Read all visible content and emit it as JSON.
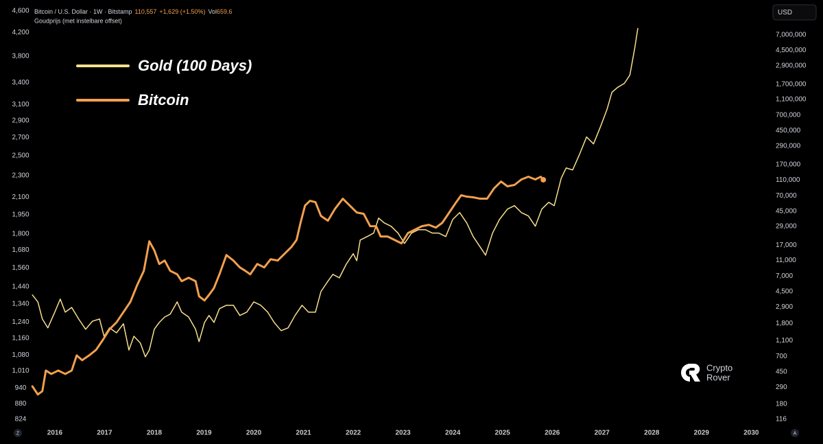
{
  "header": {
    "symbol": "Bitcoin / U.S. Dollar · 1W · Bitstamp",
    "price": "110,557",
    "change": "+1,629 (+1.50%)",
    "volume_label": "Vol",
    "volume": "659.6",
    "indicator": "Goudprijs (met instelbare offset)"
  },
  "currency_button": "USD",
  "scale_buttons": [
    "Z",
    "A"
  ],
  "watermark": [
    "Crypto",
    "Rover"
  ],
  "chart_data": {
    "type": "line",
    "log_scale": true,
    "grid": false,
    "legend": "top-left",
    "xlim": [
      2015.45,
      2030.34
    ],
    "xticks": [
      2016,
      2017,
      2018,
      2019,
      2020,
      2021,
      2022,
      2023,
      2024,
      2025,
      2026,
      2027,
      2028,
      2029,
      2030
    ],
    "ylim": [
      824,
      4600
    ],
    "yticks": [
      824,
      880,
      940,
      {
        "value": 1010,
        "label": "1,010"
      },
      {
        "value": 1080,
        "label": "1,080"
      },
      {
        "value": 1160,
        "label": "1,160"
      },
      {
        "value": 1240,
        "label": "1,240"
      },
      {
        "value": 1340,
        "label": "1,340"
      },
      {
        "value": 1440,
        "label": "1,440"
      },
      {
        "value": 1560,
        "label": "1,560"
      },
      {
        "value": 1680,
        "label": "1,680"
      },
      {
        "value": 1800,
        "label": "1,800"
      },
      {
        "value": 1950,
        "label": "1,950"
      },
      {
        "value": 2100,
        "label": "2,100"
      },
      {
        "value": 2300,
        "label": "2,300"
      },
      {
        "value": 2500,
        "label": "2,500"
      },
      {
        "value": 2700,
        "label": "2,700"
      },
      {
        "value": 2900,
        "label": "2,900"
      },
      {
        "value": 3100,
        "label": "3,100"
      },
      {
        "value": 3400,
        "label": "3,400"
      },
      {
        "value": 3800,
        "label": "3,800"
      },
      {
        "value": 4200,
        "label": "4,200"
      },
      {
        "value": 4600,
        "label": "4,600"
      }
    ],
    "y2lim": [
      116,
      13900000
    ],
    "y2ticks": [
      116,
      180,
      290,
      450,
      700,
      {
        "value": 1100,
        "label": "1,100"
      },
      {
        "value": 1800,
        "label": "1,800"
      },
      {
        "value": 2900,
        "label": "2,900"
      },
      {
        "value": 4500,
        "label": "4,500"
      },
      {
        "value": 7000,
        "label": "7,000"
      },
      {
        "value": 11000,
        "label": "11,000"
      },
      {
        "value": 17000,
        "label": "17,000"
      },
      {
        "value": 29000,
        "label": "29,000"
      },
      {
        "value": 45000,
        "label": "45,000"
      },
      {
        "value": 70000,
        "label": "70,000"
      },
      {
        "value": 110000,
        "label": "110,000"
      },
      {
        "value": 170000,
        "label": "170,000"
      },
      {
        "value": 290000,
        "label": "290,000"
      },
      {
        "value": 450000,
        "label": "450,000"
      },
      {
        "value": 700000,
        "label": "700,000"
      },
      {
        "value": 1100000,
        "label": "1,100,000"
      },
      {
        "value": 1700000,
        "label": "1,700,000"
      },
      {
        "value": 2900000,
        "label": "2,900,000"
      },
      {
        "value": 4500000,
        "label": "4,500,000"
      },
      {
        "value": 7000000,
        "label": "7,000,000"
      }
    ],
    "series": [
      {
        "name": "Gold (100 Days)",
        "color": "#f8e08c",
        "width": 1.5,
        "x": [
          2015.55,
          2015.66,
          2015.75,
          2015.86,
          2016.0,
          2016.11,
          2016.21,
          2016.34,
          2016.48,
          2016.62,
          2016.76,
          2016.9,
          2016.99,
          2017.1,
          2017.24,
          2017.38,
          2017.49,
          2017.59,
          2017.72,
          2017.82,
          2017.9,
          2018.0,
          2018.1,
          2018.21,
          2018.32,
          2018.46,
          2018.55,
          2018.69,
          2018.83,
          2018.9,
          2019.01,
          2019.1,
          2019.2,
          2019.31,
          2019.45,
          2019.59,
          2019.72,
          2019.86,
          2020.0,
          2020.14,
          2020.28,
          2020.41,
          2020.55,
          2020.69,
          2020.83,
          2020.97,
          2021.1,
          2021.24,
          2021.35,
          2021.49,
          2021.59,
          2021.72,
          2021.86,
          2022.0,
          2022.07,
          2022.14,
          2022.28,
          2022.41,
          2022.51,
          2022.62,
          2022.76,
          2022.9,
          2023.03,
          2023.17,
          2023.31,
          2023.45,
          2023.59,
          2023.72,
          2023.86,
          2024.0,
          2024.14,
          2024.28,
          2024.41,
          2024.55,
          2024.66,
          2024.8,
          2024.94,
          2025.1,
          2025.24,
          2025.38,
          2025.52,
          2025.66,
          2025.79,
          2025.93,
          2026.04,
          2026.18,
          2026.28,
          2026.41,
          2026.55,
          2026.69,
          2026.83,
          2026.97,
          2027.1,
          2027.2,
          2027.31,
          2027.45,
          2027.56,
          2027.61,
          2027.66,
          2027.72
        ],
        "values": [
          1391,
          1351,
          1257,
          1211,
          1294,
          1367,
          1294,
          1320,
          1257,
          1204,
          1246,
          1257,
          1169,
          1211,
          1186,
          1232,
          1103,
          1169,
          1136,
          1072,
          1103,
          1204,
          1239,
          1268,
          1283,
          1351,
          1294,
          1268,
          1204,
          1143,
          1239,
          1276,
          1239,
          1313,
          1332,
          1332,
          1276,
          1294,
          1351,
          1332,
          1294,
          1239,
          1197,
          1211,
          1276,
          1332,
          1294,
          1294,
          1411,
          1474,
          1517,
          1495,
          1584,
          1655,
          1607,
          1753,
          1779,
          1805,
          1923,
          1885,
          1858,
          1805,
          1728,
          1805,
          1831,
          1831,
          1805,
          1805,
          1779,
          1912,
          1968,
          1885,
          1779,
          1703,
          1645,
          1805,
          1912,
          1997,
          2026,
          1968,
          1940,
          1858,
          1997,
          2055,
          2026,
          2274,
          2375,
          2355,
          2517,
          2706,
          2628,
          2826,
          3037,
          3266,
          3332,
          3391,
          3510,
          3719,
          3941,
          4273
        ]
      },
      {
        "name": "Bitcoin",
        "color": "#f2a04e",
        "width": 3,
        "axis": "y2",
        "x": [
          2015.55,
          2015.66,
          2015.75,
          2015.82,
          2015.93,
          2016.07,
          2016.21,
          2016.34,
          2016.44,
          2016.55,
          2016.69,
          2016.83,
          2016.97,
          2017.1,
          2017.24,
          2017.38,
          2017.52,
          2017.66,
          2017.79,
          2017.9,
          2018.0,
          2018.1,
          2018.21,
          2018.32,
          2018.46,
          2018.55,
          2018.69,
          2018.83,
          2018.9,
          2019.01,
          2019.1,
          2019.2,
          2019.31,
          2019.45,
          2019.59,
          2019.72,
          2019.83,
          2019.93,
          2020.07,
          2020.21,
          2020.34,
          2020.48,
          2020.62,
          2020.76,
          2020.86,
          2020.94,
          2021.03,
          2021.13,
          2021.24,
          2021.35,
          2021.49,
          2021.63,
          2021.79,
          2021.93,
          2022.07,
          2022.21,
          2022.34,
          2022.46,
          2022.55,
          2022.69,
          2022.83,
          2022.97,
          2023.1,
          2023.24,
          2023.38,
          2023.52,
          2023.66,
          2023.79,
          2023.93,
          2024.07,
          2024.17,
          2024.28,
          2024.41,
          2024.55,
          2024.69,
          2024.83,
          2024.97,
          2025.1,
          2025.24,
          2025.38,
          2025.52,
          2025.66,
          2025.77,
          2025.82
        ],
        "values": [
          298,
          236,
          260,
          469,
          425,
          469,
          425,
          469,
          723,
          630,
          723,
          847,
          1137,
          1528,
          1860,
          2499,
          3357,
          5491,
          8141,
          18976,
          14688,
          9910,
          10935,
          8141,
          7378,
          6059,
          6686,
          6059,
          3930,
          3492,
          4088,
          4978,
          7378,
          12795,
          10935,
          8982,
          8141,
          7378,
          9910,
          8982,
          11371,
          10935,
          13317,
          16205,
          19732,
          32260,
          52780,
          60587,
          58255,
          39278,
          34232,
          47838,
          64287,
          52780,
          43349,
          41679,
          29255,
          29255,
          21773,
          21773,
          19732,
          17887,
          24035,
          26518,
          29255,
          30438,
          28118,
          32260,
          43349,
          58255,
          70980,
          68243,
          66909,
          64287,
          64287,
          86397,
          105166,
          91652,
          95340,
          111557,
          120640,
          111557,
          120640,
          110557
        ]
      }
    ]
  }
}
